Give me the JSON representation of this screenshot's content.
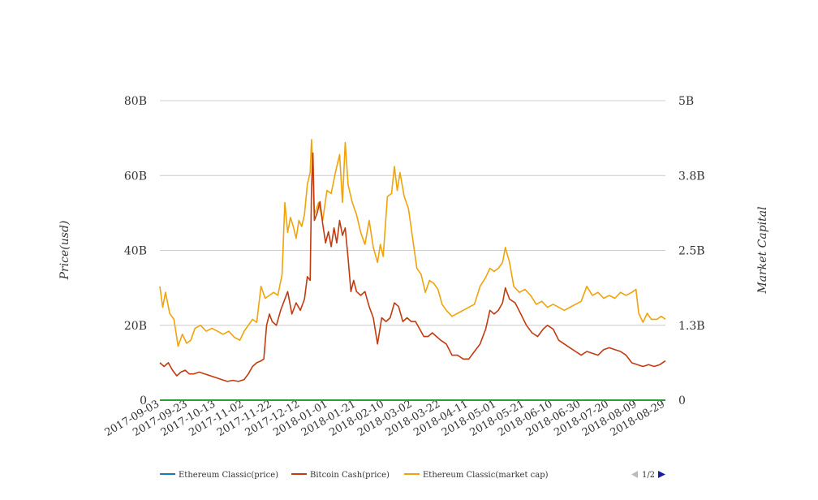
{
  "chart_data": {
    "type": "line",
    "title": "",
    "ylabel_left": "Price(usd)",
    "ylabel_right": "Market Capital",
    "ylim_left": [
      0,
      80
    ],
    "ylim_right": [
      0,
      5
    ],
    "yticks_left": [
      "0",
      "20B",
      "40B",
      "60B",
      "80B"
    ],
    "yticks_right": [
      "0",
      "1.3B",
      "2.5B",
      "3.8B",
      "5B"
    ],
    "x_ticks": [
      "2017-09-03",
      "2017-09-23",
      "2017-10-13",
      "2017-11-02",
      "2017-11-22",
      "2017-12-12",
      "2018-01-01",
      "2018-01-21",
      "2018-02-10",
      "2018-03-02",
      "2018-03-22",
      "2018-04-11",
      "2018-05-01",
      "2018-05-21",
      "2018-06-10",
      "2018-06-30",
      "2018-07-20",
      "2018-08-09",
      "2018-08-29"
    ],
    "x_start": "2017-09-03",
    "x_end": "2018-08-29",
    "grid": true,
    "legend_position": "bottom",
    "legend_pager": "1/2",
    "colors": {
      "etc_price": "#1f77b4",
      "bch_price": "#c23b10",
      "etc_mcap": "#f0a30a",
      "zero_line": "#2e9e3a"
    },
    "series": [
      {
        "name": "Ethereum Classic(price)",
        "axis": "left",
        "color": "#1f77b4",
        "points": [
          [
            "2017-09-03",
            0.01
          ],
          [
            "2018-08-29",
            0.01
          ]
        ]
      },
      {
        "name": "Bitcoin Cash(price)",
        "axis": "left",
        "color": "#c23b10",
        "points": [
          [
            "2017-09-03",
            10
          ],
          [
            "2017-09-06",
            9
          ],
          [
            "2017-09-09",
            10
          ],
          [
            "2017-09-12",
            8
          ],
          [
            "2017-09-15",
            6.5
          ],
          [
            "2017-09-18",
            7.5
          ],
          [
            "2017-09-21",
            8
          ],
          [
            "2017-09-24",
            7
          ],
          [
            "2017-09-27",
            7
          ],
          [
            "2017-10-01",
            7.5
          ],
          [
            "2017-10-05",
            7
          ],
          [
            "2017-10-09",
            6.5
          ],
          [
            "2017-10-13",
            6
          ],
          [
            "2017-10-17",
            5.5
          ],
          [
            "2017-10-21",
            5
          ],
          [
            "2017-10-25",
            5.3
          ],
          [
            "2017-10-29",
            5
          ],
          [
            "2017-11-02",
            5.5
          ],
          [
            "2017-11-05",
            7
          ],
          [
            "2017-11-08",
            9
          ],
          [
            "2017-11-11",
            10
          ],
          [
            "2017-11-14",
            10.5
          ],
          [
            "2017-11-16",
            11
          ],
          [
            "2017-11-18",
            20
          ],
          [
            "2017-11-20",
            23
          ],
          [
            "2017-11-22",
            21
          ],
          [
            "2017-11-25",
            20
          ],
          [
            "2017-11-28",
            24
          ],
          [
            "2017-12-01",
            27
          ],
          [
            "2017-12-03",
            29
          ],
          [
            "2017-12-06",
            23
          ],
          [
            "2017-12-09",
            26
          ],
          [
            "2017-12-12",
            24
          ],
          [
            "2017-12-15",
            27
          ],
          [
            "2017-12-17",
            33
          ],
          [
            "2017-12-19",
            32
          ],
          [
            "2017-12-20",
            57
          ],
          [
            "2017-12-21",
            66
          ],
          [
            "2017-12-22",
            48
          ],
          [
            "2017-12-24",
            50
          ],
          [
            "2017-12-26",
            53
          ],
          [
            "2017-12-28",
            47
          ],
          [
            "2017-12-30",
            42
          ],
          [
            "2018-01-01",
            45
          ],
          [
            "2018-01-03",
            41
          ],
          [
            "2018-01-05",
            46
          ],
          [
            "2018-01-07",
            42
          ],
          [
            "2018-01-09",
            48
          ],
          [
            "2018-01-11",
            44
          ],
          [
            "2018-01-13",
            46
          ],
          [
            "2018-01-15",
            38
          ],
          [
            "2018-01-17",
            29
          ],
          [
            "2018-01-19",
            32
          ],
          [
            "2018-01-21",
            29
          ],
          [
            "2018-01-24",
            28
          ],
          [
            "2018-01-27",
            29
          ],
          [
            "2018-01-30",
            25
          ],
          [
            "2018-02-02",
            22
          ],
          [
            "2018-02-05",
            15
          ],
          [
            "2018-02-08",
            22
          ],
          [
            "2018-02-11",
            21
          ],
          [
            "2018-02-14",
            22
          ],
          [
            "2018-02-17",
            26
          ],
          [
            "2018-02-20",
            25
          ],
          [
            "2018-02-23",
            21
          ],
          [
            "2018-02-26",
            22
          ],
          [
            "2018-03-01",
            21
          ],
          [
            "2018-03-04",
            21
          ],
          [
            "2018-03-07",
            19
          ],
          [
            "2018-03-10",
            17
          ],
          [
            "2018-03-13",
            17
          ],
          [
            "2018-03-16",
            18
          ],
          [
            "2018-03-19",
            17
          ],
          [
            "2018-03-22",
            16
          ],
          [
            "2018-03-26",
            15
          ],
          [
            "2018-03-30",
            12
          ],
          [
            "2018-04-03",
            12
          ],
          [
            "2018-04-07",
            11
          ],
          [
            "2018-04-11",
            11
          ],
          [
            "2018-04-15",
            13
          ],
          [
            "2018-04-19",
            15
          ],
          [
            "2018-04-23",
            19
          ],
          [
            "2018-04-26",
            24
          ],
          [
            "2018-04-29",
            23
          ],
          [
            "2018-05-02",
            24
          ],
          [
            "2018-05-05",
            26
          ],
          [
            "2018-05-07",
            30
          ],
          [
            "2018-05-10",
            27
          ],
          [
            "2018-05-14",
            26
          ],
          [
            "2018-05-18",
            23
          ],
          [
            "2018-05-22",
            20
          ],
          [
            "2018-05-26",
            18
          ],
          [
            "2018-05-30",
            17
          ],
          [
            "2018-06-03",
            19
          ],
          [
            "2018-06-06",
            20
          ],
          [
            "2018-06-10",
            19
          ],
          [
            "2018-06-14",
            16
          ],
          [
            "2018-06-18",
            15
          ],
          [
            "2018-06-22",
            14
          ],
          [
            "2018-06-26",
            13
          ],
          [
            "2018-06-30",
            12
          ],
          [
            "2018-07-04",
            13
          ],
          [
            "2018-07-08",
            12.5
          ],
          [
            "2018-07-12",
            12
          ],
          [
            "2018-07-16",
            13.5
          ],
          [
            "2018-07-20",
            14
          ],
          [
            "2018-07-24",
            13.5
          ],
          [
            "2018-07-28",
            13
          ],
          [
            "2018-08-01",
            12
          ],
          [
            "2018-08-05",
            10
          ],
          [
            "2018-08-09",
            9.5
          ],
          [
            "2018-08-13",
            9
          ],
          [
            "2018-08-17",
            9.5
          ],
          [
            "2018-08-21",
            9
          ],
          [
            "2018-08-25",
            9.5
          ],
          [
            "2018-08-29",
            10.5
          ]
        ]
      },
      {
        "name": "Ethereum Classic(market cap)",
        "axis": "right",
        "color": "#f0a30a",
        "points": [
          [
            "2017-09-03",
            1.9
          ],
          [
            "2017-09-05",
            1.55
          ],
          [
            "2017-09-07",
            1.8
          ],
          [
            "2017-09-10",
            1.45
          ],
          [
            "2017-09-13",
            1.35
          ],
          [
            "2017-09-16",
            0.9
          ],
          [
            "2017-09-19",
            1.1
          ],
          [
            "2017-09-22",
            0.95
          ],
          [
            "2017-09-25",
            1.0
          ],
          [
            "2017-09-28",
            1.2
          ],
          [
            "2017-10-02",
            1.25
          ],
          [
            "2017-10-06",
            1.15
          ],
          [
            "2017-10-10",
            1.2
          ],
          [
            "2017-10-14",
            1.15
          ],
          [
            "2017-10-18",
            1.1
          ],
          [
            "2017-10-22",
            1.15
          ],
          [
            "2017-10-26",
            1.05
          ],
          [
            "2017-10-30",
            1.0
          ],
          [
            "2017-11-02",
            1.15
          ],
          [
            "2017-11-05",
            1.25
          ],
          [
            "2017-11-08",
            1.35
          ],
          [
            "2017-11-11",
            1.3
          ],
          [
            "2017-11-14",
            1.9
          ],
          [
            "2017-11-17",
            1.7
          ],
          [
            "2017-11-20",
            1.75
          ],
          [
            "2017-11-23",
            1.8
          ],
          [
            "2017-11-26",
            1.75
          ],
          [
            "2017-11-29",
            2.1
          ],
          [
            "2017-12-01",
            3.3
          ],
          [
            "2017-12-03",
            2.8
          ],
          [
            "2017-12-05",
            3.05
          ],
          [
            "2017-12-07",
            2.9
          ],
          [
            "2017-12-09",
            2.7
          ],
          [
            "2017-12-11",
            3.0
          ],
          [
            "2017-12-13",
            2.9
          ],
          [
            "2017-12-15",
            3.1
          ],
          [
            "2017-12-17",
            3.6
          ],
          [
            "2017-12-19",
            3.8
          ],
          [
            "2017-12-20",
            4.35
          ],
          [
            "2017-12-22",
            3.1
          ],
          [
            "2017-12-25",
            3.3
          ],
          [
            "2017-12-28",
            3.0
          ],
          [
            "2017-12-31",
            3.5
          ],
          [
            "2018-01-03",
            3.45
          ],
          [
            "2018-01-06",
            3.8
          ],
          [
            "2018-01-09",
            4.1
          ],
          [
            "2018-01-11",
            3.3
          ],
          [
            "2018-01-13",
            4.3
          ],
          [
            "2018-01-15",
            3.6
          ],
          [
            "2018-01-18",
            3.3
          ],
          [
            "2018-01-21",
            3.1
          ],
          [
            "2018-01-24",
            2.8
          ],
          [
            "2018-01-27",
            2.6
          ],
          [
            "2018-01-30",
            3.0
          ],
          [
            "2018-02-02",
            2.55
          ],
          [
            "2018-02-05",
            2.3
          ],
          [
            "2018-02-07",
            2.6
          ],
          [
            "2018-02-09",
            2.4
          ],
          [
            "2018-02-12",
            3.4
          ],
          [
            "2018-02-15",
            3.45
          ],
          [
            "2018-02-17",
            3.9
          ],
          [
            "2018-02-19",
            3.5
          ],
          [
            "2018-02-21",
            3.8
          ],
          [
            "2018-02-24",
            3.4
          ],
          [
            "2018-02-27",
            3.2
          ],
          [
            "2018-03-02",
            2.7
          ],
          [
            "2018-03-05",
            2.2
          ],
          [
            "2018-03-08",
            2.1
          ],
          [
            "2018-03-11",
            1.8
          ],
          [
            "2018-03-14",
            2.0
          ],
          [
            "2018-03-17",
            1.95
          ],
          [
            "2018-03-20",
            1.85
          ],
          [
            "2018-03-23",
            1.6
          ],
          [
            "2018-03-26",
            1.5
          ],
          [
            "2018-03-30",
            1.4
          ],
          [
            "2018-04-03",
            1.45
          ],
          [
            "2018-04-07",
            1.5
          ],
          [
            "2018-04-11",
            1.55
          ],
          [
            "2018-04-15",
            1.6
          ],
          [
            "2018-04-19",
            1.9
          ],
          [
            "2018-04-23",
            2.05
          ],
          [
            "2018-04-26",
            2.2
          ],
          [
            "2018-04-29",
            2.15
          ],
          [
            "2018-05-02",
            2.2
          ],
          [
            "2018-05-05",
            2.3
          ],
          [
            "2018-05-07",
            2.55
          ],
          [
            "2018-05-10",
            2.3
          ],
          [
            "2018-05-13",
            1.9
          ],
          [
            "2018-05-17",
            1.8
          ],
          [
            "2018-05-21",
            1.85
          ],
          [
            "2018-05-25",
            1.75
          ],
          [
            "2018-05-29",
            1.6
          ],
          [
            "2018-06-02",
            1.65
          ],
          [
            "2018-06-06",
            1.55
          ],
          [
            "2018-06-10",
            1.6
          ],
          [
            "2018-06-14",
            1.55
          ],
          [
            "2018-06-18",
            1.5
          ],
          [
            "2018-06-22",
            1.55
          ],
          [
            "2018-06-26",
            1.6
          ],
          [
            "2018-06-30",
            1.65
          ],
          [
            "2018-07-04",
            1.9
          ],
          [
            "2018-07-08",
            1.75
          ],
          [
            "2018-07-12",
            1.8
          ],
          [
            "2018-07-16",
            1.7
          ],
          [
            "2018-07-20",
            1.75
          ],
          [
            "2018-07-24",
            1.7
          ],
          [
            "2018-07-28",
            1.8
          ],
          [
            "2018-08-01",
            1.75
          ],
          [
            "2018-08-05",
            1.8
          ],
          [
            "2018-08-08",
            1.85
          ],
          [
            "2018-08-10",
            1.45
          ],
          [
            "2018-08-13",
            1.3
          ],
          [
            "2018-08-16",
            1.45
          ],
          [
            "2018-08-19",
            1.35
          ],
          [
            "2018-08-23",
            1.35
          ],
          [
            "2018-08-26",
            1.4
          ],
          [
            "2018-08-29",
            1.35
          ]
        ]
      }
    ]
  }
}
